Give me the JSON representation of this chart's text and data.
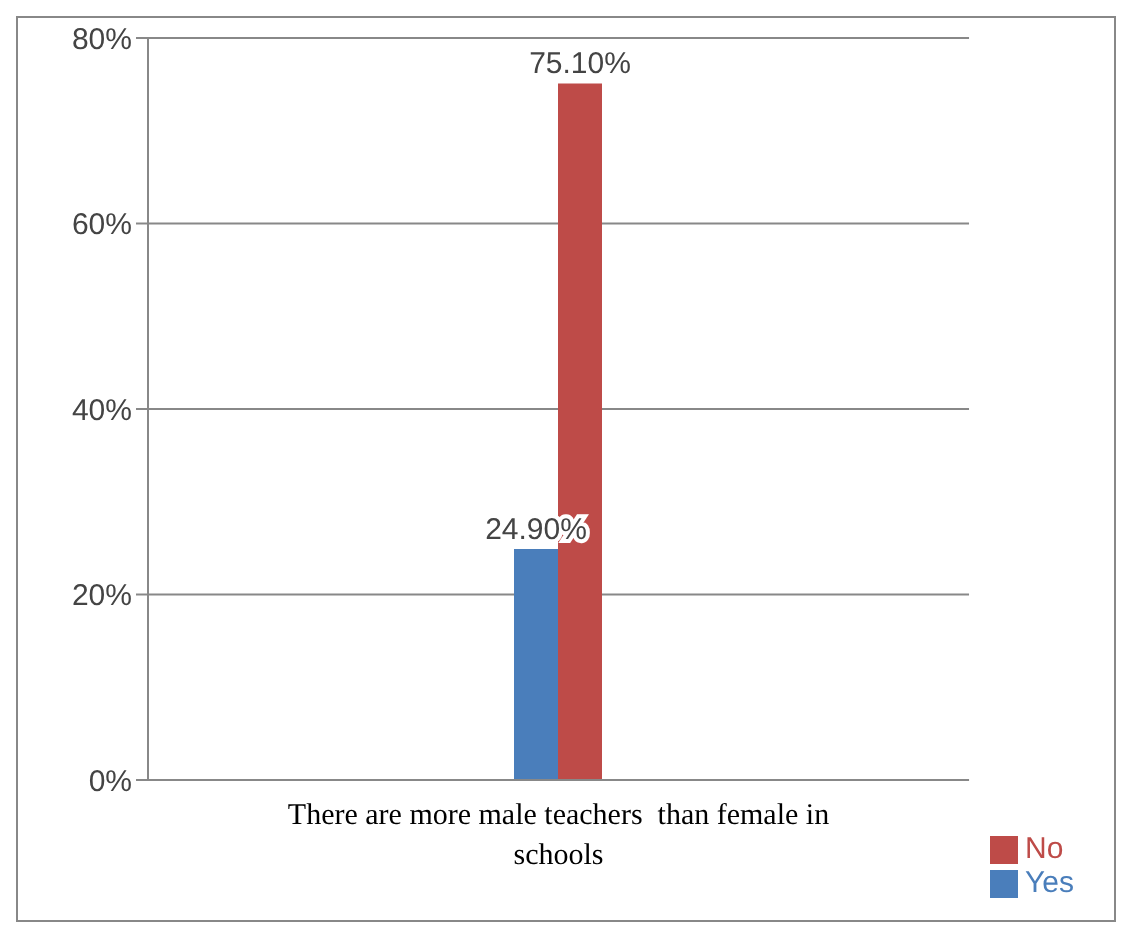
{
  "chart_data": {
    "type": "bar",
    "categories": [
      "There are more male teachers  than female in schools"
    ],
    "series": [
      {
        "name": "Yes",
        "color": "#4a7ebb",
        "values": [
          24.9
        ],
        "value_labels": [
          "24.90%"
        ]
      },
      {
        "name": "No",
        "color": "#be4b48",
        "values": [
          75.1
        ],
        "value_labels": [
          "75.10%"
        ]
      }
    ],
    "ylim": [
      0,
      80
    ],
    "yticks": [
      {
        "value": 0,
        "label": "0%"
      },
      {
        "value": 20,
        "label": "20%"
      },
      {
        "value": 40,
        "label": "40%"
      },
      {
        "value": 60,
        "label": "60%"
      },
      {
        "value": 80,
        "label": "80%"
      }
    ],
    "grid": "y",
    "legend": "bottom right"
  }
}
